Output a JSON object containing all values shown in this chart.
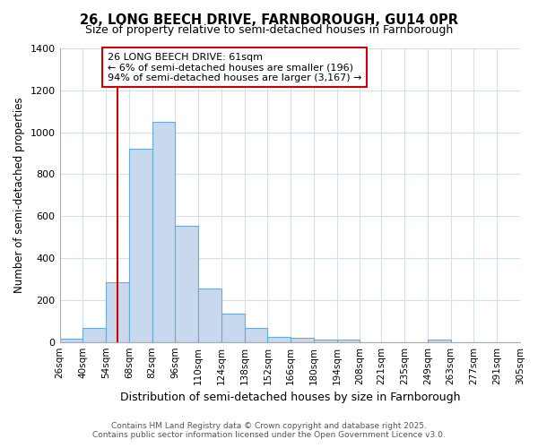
{
  "title1": "26, LONG BEECH DRIVE, FARNBOROUGH, GU14 0PR",
  "title2": "Size of property relative to semi-detached houses in Farnborough",
  "xlabel": "Distribution of semi-detached houses by size in Farnborough",
  "ylabel": "Number of semi-detached properties",
  "bin_edges": [
    26,
    40,
    54,
    68,
    82,
    96,
    110,
    124,
    138,
    152,
    166,
    180,
    194,
    208,
    221,
    235,
    249,
    263,
    277,
    291,
    305
  ],
  "bar_heights": [
    15,
    65,
    285,
    920,
    1050,
    555,
    255,
    135,
    65,
    25,
    20,
    10,
    10,
    0,
    0,
    0,
    10,
    0,
    0,
    0
  ],
  "bar_color": "#c8d8ed",
  "bar_edge_color": "#6aaad4",
  "bar_edge_width": 0.8,
  "vline_x": 61,
  "vline_color": "#cc0000",
  "ylim": [
    0,
    1400
  ],
  "yticks": [
    0,
    200,
    400,
    600,
    800,
    1000,
    1200,
    1400
  ],
  "annotation_title": "26 LONG BEECH DRIVE: 61sqm",
  "annotation_line1": "← 6% of semi-detached houses are smaller (196)",
  "annotation_line2": "94% of semi-detached houses are larger (3,167) →",
  "annotation_box_color": "#ffffff",
  "annotation_box_edge": "#cc0000",
  "footer1": "Contains HM Land Registry data © Crown copyright and database right 2025.",
  "footer2": "Contains public sector information licensed under the Open Government Licence v3.0.",
  "background_color": "#ffffff",
  "grid_color": "#d0e0f0",
  "tick_labels": [
    "26sqm",
    "40sqm",
    "54sqm",
    "68sqm",
    "82sqm",
    "96sqm",
    "110sqm",
    "124sqm",
    "138sqm",
    "152sqm",
    "166sqm",
    "180sqm",
    "194sqm",
    "208sqm",
    "221sqm",
    "235sqm",
    "249sqm",
    "263sqm",
    "277sqm",
    "291sqm",
    "305sqm"
  ]
}
